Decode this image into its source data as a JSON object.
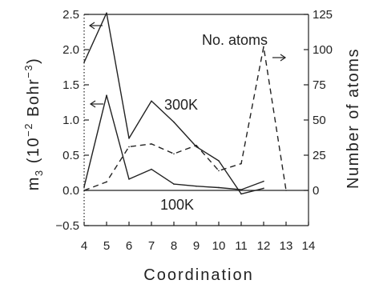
{
  "chart_data": {
    "type": "line",
    "title": "",
    "xlabel": "Coordination",
    "ylabel_left": "m3 (10−2 Bohr−3)",
    "ylabel_left_parts": {
      "sym": "m",
      "sub": "3",
      "open": "(10",
      "exp1": "−2",
      "mid": " Bohr",
      "exp2": "−3",
      "close": ")"
    },
    "ylabel_right": "Number of atoms",
    "x_ticks": [
      4,
      5,
      6,
      7,
      8,
      9,
      10,
      11,
      12,
      13,
      14
    ],
    "y_left_ticks": [
      "2.5",
      "2.0",
      "1.5",
      "1.0",
      "0.5",
      "0.0",
      "−0.5"
    ],
    "y_left_tick_values": [
      2.5,
      2.0,
      1.5,
      1.0,
      0.5,
      0.0,
      -0.5
    ],
    "y_right_ticks": [
      "125",
      "100",
      "75",
      "50",
      "25",
      "0"
    ],
    "y_right_tick_values": [
      125,
      100,
      75,
      50,
      25,
      0
    ],
    "xlim": [
      4,
      14
    ],
    "ylim_left": [
      -0.5,
      2.5
    ],
    "ylim_right": [
      -25,
      125
    ],
    "series": [
      {
        "name": "300K",
        "axis": "left",
        "style": "solid",
        "x": [
          4,
          5,
          6,
          7,
          8,
          9,
          10,
          11,
          12
        ],
        "y": [
          1.82,
          2.52,
          0.74,
          1.27,
          0.97,
          0.62,
          0.42,
          -0.05,
          0.03
        ]
      },
      {
        "name": "100K",
        "axis": "left",
        "style": "solid",
        "x": [
          4,
          5,
          6,
          7,
          8,
          9,
          10,
          11,
          12
        ],
        "y": [
          0.05,
          1.35,
          0.16,
          0.3,
          0.09,
          0.06,
          0.04,
          0.01,
          0.13
        ]
      },
      {
        "name": "No. atoms",
        "axis": "right",
        "style": "dashed",
        "x": [
          4,
          5,
          6,
          7,
          8,
          9,
          10,
          11,
          12,
          13
        ],
        "y": [
          0,
          6,
          31,
          33,
          26,
          32,
          14,
          19,
          102,
          0
        ]
      }
    ],
    "annotations": [
      {
        "text": "300K",
        "near_series": "300K"
      },
      {
        "text": "100K",
        "near_series": "100K"
      },
      {
        "text": "No. atoms",
        "near_series": "No. atoms"
      }
    ],
    "grid": false,
    "zero_line": true
  }
}
